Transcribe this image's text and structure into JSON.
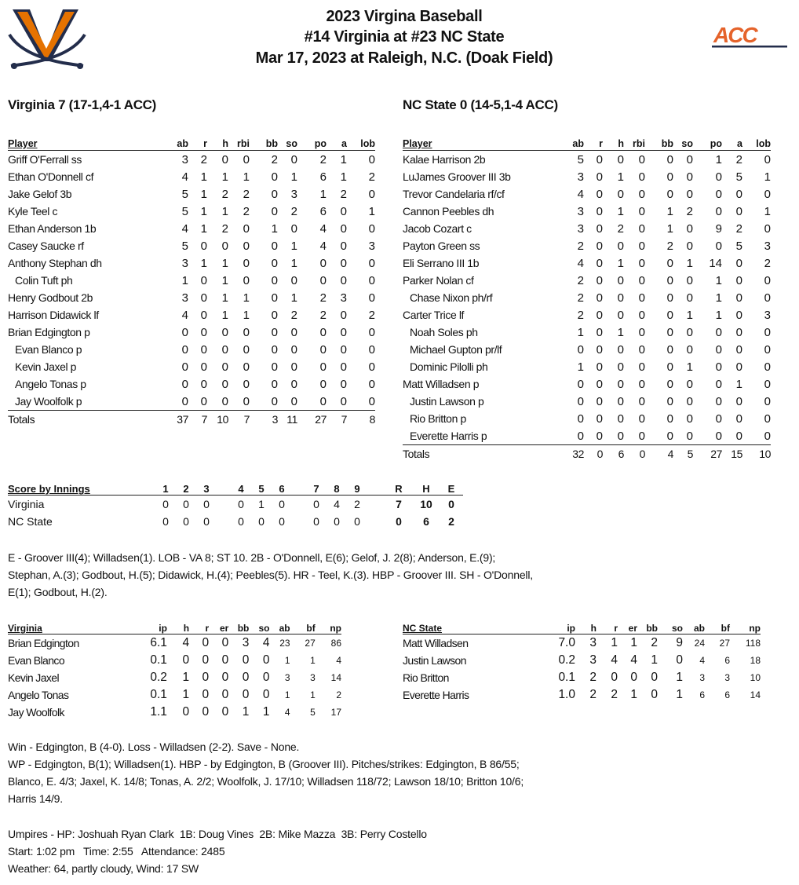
{
  "header": {
    "line1": "2023 Virgina Baseball",
    "line2": "#14 Virginia at #23 NC State",
    "line3": "Mar 17, 2023 at Raleigh, N.C. (Doak Field)",
    "left_logo": "virginia-v-sabres-logo",
    "right_logo": "acc-logo",
    "right_logo_text": "ACC",
    "colors": {
      "orange": "#E57200",
      "navy": "#232D4B"
    }
  },
  "batting_columns": [
    "Player",
    "ab",
    "r",
    "h",
    "rbi",
    "bb",
    "so",
    "po",
    "a",
    "lob"
  ],
  "virginia": {
    "heading": "Virginia 7 (17-1,4-1 ACC)",
    "rows": [
      {
        "name": "Griff O'Ferrall ss",
        "sub": false,
        "stats": [
          "3",
          "2",
          "0",
          "0",
          "2",
          "0",
          "2",
          "1",
          "0"
        ]
      },
      {
        "name": "Ethan O'Donnell cf",
        "sub": false,
        "stats": [
          "4",
          "1",
          "1",
          "1",
          "0",
          "1",
          "6",
          "1",
          "2"
        ]
      },
      {
        "name": "Jake Gelof 3b",
        "sub": false,
        "stats": [
          "5",
          "1",
          "2",
          "2",
          "0",
          "3",
          "1",
          "2",
          "0"
        ]
      },
      {
        "name": "Kyle Teel c",
        "sub": false,
        "stats": [
          "5",
          "1",
          "1",
          "2",
          "0",
          "2",
          "6",
          "0",
          "1"
        ]
      },
      {
        "name": "Ethan Anderson 1b",
        "sub": false,
        "stats": [
          "4",
          "1",
          "2",
          "0",
          "1",
          "0",
          "4",
          "0",
          "0"
        ]
      },
      {
        "name": "Casey Saucke rf",
        "sub": false,
        "stats": [
          "5",
          "0",
          "0",
          "0",
          "0",
          "1",
          "4",
          "0",
          "3"
        ]
      },
      {
        "name": "Anthony Stephan dh",
        "sub": false,
        "stats": [
          "3",
          "1",
          "1",
          "0",
          "0",
          "1",
          "0",
          "0",
          "0"
        ]
      },
      {
        "name": "Colin Tuft ph",
        "sub": true,
        "stats": [
          "1",
          "0",
          "1",
          "0",
          "0",
          "0",
          "0",
          "0",
          "0"
        ]
      },
      {
        "name": "Henry Godbout 2b",
        "sub": false,
        "stats": [
          "3",
          "0",
          "1",
          "1",
          "0",
          "1",
          "2",
          "3",
          "0"
        ]
      },
      {
        "name": "Harrison Didawick lf",
        "sub": false,
        "stats": [
          "4",
          "0",
          "1",
          "1",
          "0",
          "2",
          "2",
          "0",
          "2"
        ]
      },
      {
        "name": "Brian Edgington p",
        "sub": false,
        "stats": [
          "0",
          "0",
          "0",
          "0",
          "0",
          "0",
          "0",
          "0",
          "0"
        ]
      },
      {
        "name": "Evan Blanco p",
        "sub": true,
        "stats": [
          "0",
          "0",
          "0",
          "0",
          "0",
          "0",
          "0",
          "0",
          "0"
        ]
      },
      {
        "name": "Kevin Jaxel p",
        "sub": true,
        "stats": [
          "0",
          "0",
          "0",
          "0",
          "0",
          "0",
          "0",
          "0",
          "0"
        ]
      },
      {
        "name": "Angelo Tonas p",
        "sub": true,
        "stats": [
          "0",
          "0",
          "0",
          "0",
          "0",
          "0",
          "0",
          "0",
          "0"
        ]
      },
      {
        "name": "Jay Woolfolk p",
        "sub": true,
        "stats": [
          "0",
          "0",
          "0",
          "0",
          "0",
          "0",
          "0",
          "0",
          "0"
        ]
      }
    ],
    "totals": {
      "label": "Totals",
      "stats": [
        "37",
        "7",
        "10",
        "7",
        "3",
        "11",
        "27",
        "7",
        "8"
      ]
    }
  },
  "ncstate": {
    "heading": "NC State 0 (14-5,1-4 ACC)",
    "rows": [
      {
        "name": "Kalae Harrison 2b",
        "sub": false,
        "stats": [
          "5",
          "0",
          "0",
          "0",
          "0",
          "0",
          "1",
          "2",
          "0"
        ]
      },
      {
        "name": "LuJames Groover III 3b",
        "sub": false,
        "stats": [
          "3",
          "0",
          "1",
          "0",
          "0",
          "0",
          "0",
          "5",
          "1"
        ]
      },
      {
        "name": "Trevor Candelaria rf/cf",
        "sub": false,
        "stats": [
          "4",
          "0",
          "0",
          "0",
          "0",
          "0",
          "0",
          "0",
          "0"
        ]
      },
      {
        "name": "Cannon Peebles dh",
        "sub": false,
        "stats": [
          "3",
          "0",
          "1",
          "0",
          "1",
          "2",
          "0",
          "0",
          "1"
        ]
      },
      {
        "name": "Jacob Cozart c",
        "sub": false,
        "stats": [
          "3",
          "0",
          "2",
          "0",
          "1",
          "0",
          "9",
          "2",
          "0"
        ]
      },
      {
        "name": "Payton Green ss",
        "sub": false,
        "stats": [
          "2",
          "0",
          "0",
          "0",
          "2",
          "0",
          "0",
          "5",
          "3"
        ]
      },
      {
        "name": "Eli Serrano III 1b",
        "sub": false,
        "stats": [
          "4",
          "0",
          "1",
          "0",
          "0",
          "1",
          "14",
          "0",
          "2"
        ]
      },
      {
        "name": "Parker Nolan cf",
        "sub": false,
        "stats": [
          "2",
          "0",
          "0",
          "0",
          "0",
          "0",
          "1",
          "0",
          "0"
        ]
      },
      {
        "name": "Chase Nixon ph/rf",
        "sub": true,
        "stats": [
          "2",
          "0",
          "0",
          "0",
          "0",
          "0",
          "1",
          "0",
          "0"
        ]
      },
      {
        "name": "Carter Trice lf",
        "sub": false,
        "stats": [
          "2",
          "0",
          "0",
          "0",
          "0",
          "1",
          "1",
          "0",
          "3"
        ]
      },
      {
        "name": "Noah Soles ph",
        "sub": true,
        "stats": [
          "1",
          "0",
          "1",
          "0",
          "0",
          "0",
          "0",
          "0",
          "0"
        ]
      },
      {
        "name": "Michael Gupton pr/lf",
        "sub": true,
        "stats": [
          "0",
          "0",
          "0",
          "0",
          "0",
          "0",
          "0",
          "0",
          "0"
        ]
      },
      {
        "name": "Dominic Pilolli ph",
        "sub": true,
        "stats": [
          "1",
          "0",
          "0",
          "0",
          "0",
          "1",
          "0",
          "0",
          "0"
        ]
      },
      {
        "name": "Matt Willadsen p",
        "sub": false,
        "stats": [
          "0",
          "0",
          "0",
          "0",
          "0",
          "0",
          "0",
          "1",
          "0"
        ]
      },
      {
        "name": "Justin Lawson p",
        "sub": true,
        "stats": [
          "0",
          "0",
          "0",
          "0",
          "0",
          "0",
          "0",
          "0",
          "0"
        ]
      },
      {
        "name": "Rio Britton p",
        "sub": true,
        "stats": [
          "0",
          "0",
          "0",
          "0",
          "0",
          "0",
          "0",
          "0",
          "0"
        ]
      },
      {
        "name": "Everette Harris p",
        "sub": true,
        "stats": [
          "0",
          "0",
          "0",
          "0",
          "0",
          "0",
          "0",
          "0",
          "0"
        ]
      }
    ],
    "totals": {
      "label": "Totals",
      "stats": [
        "32",
        "0",
        "6",
        "0",
        "4",
        "5",
        "27",
        "15",
        "10"
      ]
    }
  },
  "linescore": {
    "title": "Score by Innings",
    "innings": [
      "1",
      "2",
      "3",
      "4",
      "5",
      "6",
      "7",
      "8",
      "9"
    ],
    "rhe": [
      "R",
      "H",
      "E"
    ],
    "teams": [
      {
        "name": "Virginia",
        "innings": [
          "0",
          "0",
          "0",
          "0",
          "1",
          "0",
          "0",
          "4",
          "2"
        ],
        "rhe": [
          "7",
          "10",
          "0"
        ]
      },
      {
        "name": "NC State",
        "innings": [
          "0",
          "0",
          "0",
          "0",
          "0",
          "0",
          "0",
          "0",
          "0"
        ],
        "rhe": [
          "0",
          "6",
          "2"
        ]
      }
    ]
  },
  "notes": "E - Groover III(4); Willadsen(1). LOB - VA 8; ST 10. 2B - O'Donnell, E(6); Gelof, J. 2(8); Anderson, E.(9); Stephan, A.(3); Godbout, H.(5); Didawick, H.(4); Peebles(5). HR - Teel, K.(3). HBP - Groover III. SH - O'Donnell, E(1); Godbout, H.(2).",
  "pitching_columns": [
    "ip",
    "h",
    "r",
    "er",
    "bb",
    "so",
    "ab",
    "bf",
    "np"
  ],
  "pitching": [
    {
      "team": "Virginia",
      "rows": [
        {
          "name": "Brian Edgington",
          "stats": [
            "6.1",
            "4",
            "0",
            "0",
            "3",
            "4",
            "23",
            "27",
            "86"
          ]
        },
        {
          "name": "Evan Blanco",
          "stats": [
            "0.1",
            "0",
            "0",
            "0",
            "0",
            "0",
            "1",
            "1",
            "4"
          ]
        },
        {
          "name": "Kevin Jaxel",
          "stats": [
            "0.2",
            "1",
            "0",
            "0",
            "0",
            "0",
            "3",
            "3",
            "14"
          ]
        },
        {
          "name": "Angelo Tonas",
          "stats": [
            "0.1",
            "1",
            "0",
            "0",
            "0",
            "0",
            "1",
            "1",
            "2"
          ]
        },
        {
          "name": "Jay Woolfolk",
          "stats": [
            "1.1",
            "0",
            "0",
            "0",
            "1",
            "1",
            "4",
            "5",
            "17"
          ]
        }
      ]
    },
    {
      "team": "NC State",
      "rows": [
        {
          "name": "Matt Willadsen",
          "stats": [
            "7.0",
            "3",
            "1",
            "1",
            "2",
            "9",
            "24",
            "27",
            "118"
          ]
        },
        {
          "name": "Justin Lawson",
          "stats": [
            "0.2",
            "3",
            "4",
            "4",
            "1",
            "0",
            "4",
            "6",
            "18"
          ]
        },
        {
          "name": "Rio Britton",
          "stats": [
            "0.1",
            "2",
            "0",
            "0",
            "0",
            "1",
            "3",
            "3",
            "10"
          ]
        },
        {
          "name": "Everette Harris",
          "stats": [
            "1.0",
            "2",
            "2",
            "1",
            "0",
            "1",
            "6",
            "6",
            "14"
          ]
        }
      ]
    }
  ],
  "summary": [
    "Win - Edgington, B (4-0).  Loss - Willadsen (2-2).  Save - None.",
    "WP - Edgington, B(1); Willadsen(1). HBP - by Edgington, B (Groover III). Pitches/strikes: Edgington, B 86/55; Blanco, E. 4/3; Jaxel, K. 14/8; Tonas, A. 2/2; Woolfolk, J. 17/10; Willadsen 118/72; Lawson 18/10; Britton 10/6; Harris 14/9."
  ],
  "game_info": [
    "Umpires - HP: Joshuah Ryan Clark  1B: Doug Vines  2B: Mike Mazza  3B: Perry Costello",
    "Start: 1:02 pm   Time: 2:55   Attendance: 2485",
    "Weather: 64, partly cloudy, Wind: 17 SW"
  ]
}
